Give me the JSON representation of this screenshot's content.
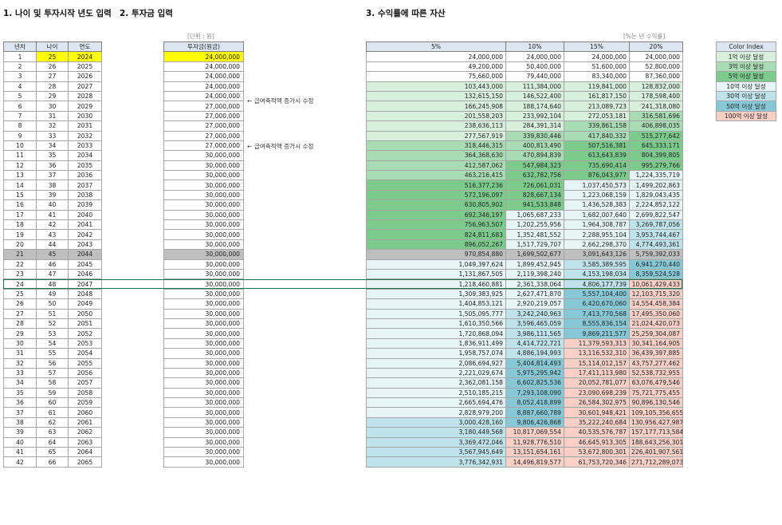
{
  "headers": {
    "section1": "1. 나이 및 투자시작 년도 입력",
    "section2": "2. 투자금 입력",
    "section3": "3. 수익률에 따른 자산"
  },
  "units": {
    "amount": "[단위 : 원]",
    "rate": "[%는 년 수익률]"
  },
  "table1": {
    "columns": [
      "년차",
      "나이",
      "연도"
    ]
  },
  "table2": {
    "columns": [
      "투자금(원금)"
    ]
  },
  "table3": {
    "columns": [
      "5%",
      "10%",
      "15%",
      "20%"
    ]
  },
  "notes": [
    {
      "row": 6,
      "text": "← 급여축적액 증가시 수정"
    },
    {
      "row": 11,
      "text": "← 급여축적액 증가시 수정"
    }
  ],
  "selected_row": 21,
  "legend": {
    "title": "Color Index",
    "items": [
      {
        "label": "1억 이상 달성",
        "color": "#d8efdc"
      },
      {
        "label": "3억 이상 달성",
        "color": "#a9dbb4"
      },
      {
        "label": "5억 이상 달성",
        "color": "#7ccb8d"
      },
      {
        "label": "10억 이상 달성",
        "color": "#e6f4f6"
      },
      {
        "label": "30억 이상 달성",
        "color": "#bfe3ea"
      },
      {
        "label": "50억 이상 달성",
        "color": "#86c8d6"
      },
      {
        "label": "100억 이상 달성",
        "color": "#f9cfc6"
      }
    ]
  },
  "rows": [
    [
      "1",
      "25",
      "2024",
      "24,000,000",
      "24,000,000",
      "24,000,000",
      "24,000,000",
      "24,000,000"
    ],
    [
      "2",
      "26",
      "2025",
      "24,000,000",
      "49,200,000",
      "50,400,000",
      "51,600,000",
      "52,800,000"
    ],
    [
      "3",
      "27",
      "2026",
      "24,000,000",
      "75,660,000",
      "79,440,000",
      "83,340,000",
      "87,360,000"
    ],
    [
      "4",
      "28",
      "2027",
      "24,000,000",
      "103,443,000",
      "111,384,000",
      "119,841,000",
      "128,832,000"
    ],
    [
      "5",
      "29",
      "2028",
      "24,000,000",
      "132,615,150",
      "146,522,400",
      "161,817,150",
      "178,598,400"
    ],
    [
      "6",
      "30",
      "2029",
      "27,000,000",
      "166,245,908",
      "188,174,640",
      "213,089,723",
      "241,318,080"
    ],
    [
      "7",
      "31",
      "2030",
      "27,000,000",
      "201,558,203",
      "233,992,104",
      "272,053,181",
      "316,581,696"
    ],
    [
      "8",
      "32",
      "2031",
      "27,000,000",
      "238,636,113",
      "284,391,314",
      "339,861,158",
      "406,898,035"
    ],
    [
      "9",
      "33",
      "2032",
      "27,000,000",
      "277,567,919",
      "339,830,446",
      "417,840,332",
      "515,277,642"
    ],
    [
      "10",
      "34",
      "2033",
      "27,000,000",
      "318,446,315",
      "400,813,490",
      "507,516,381",
      "645,333,171"
    ],
    [
      "11",
      "35",
      "2034",
      "30,000,000",
      "364,368,630",
      "470,894,839",
      "613,643,839",
      "804,399,805"
    ],
    [
      "12",
      "36",
      "2035",
      "30,000,000",
      "412,587,062",
      "547,984,323",
      "735,690,414",
      "995,279,766"
    ],
    [
      "13",
      "37",
      "2036",
      "30,000,000",
      "463,216,415",
      "632,782,756",
      "876,043,977",
      "1,224,335,719"
    ],
    [
      "14",
      "38",
      "2037",
      "30,000,000",
      "516,377,236",
      "726,061,031",
      "1,037,450,573",
      "1,499,202,863"
    ],
    [
      "15",
      "39",
      "2038",
      "30,000,000",
      "572,196,097",
      "828,667,134",
      "1,223,068,159",
      "1,829,043,435"
    ],
    [
      "16",
      "40",
      "2039",
      "30,000,000",
      "630,805,902",
      "941,533,848",
      "1,436,528,383",
      "2,224,852,122"
    ],
    [
      "17",
      "41",
      "2040",
      "30,000,000",
      "692,346,197",
      "1,065,687,233",
      "1,682,007,640",
      "2,699,822,547"
    ],
    [
      "18",
      "42",
      "2041",
      "30,000,000",
      "756,963,507",
      "1,202,255,956",
      "1,964,308,787",
      "3,269,787,056"
    ],
    [
      "19",
      "43",
      "2042",
      "30,000,000",
      "824,811,683",
      "1,352,481,552",
      "2,288,955,104",
      "3,953,744,467"
    ],
    [
      "20",
      "44",
      "2043",
      "30,000,000",
      "896,052,267",
      "1,517,729,707",
      "2,662,298,370",
      "4,774,493,361"
    ],
    [
      "21",
      "45",
      "2044",
      "30,000,000",
      "970,854,880",
      "1,699,502,677",
      "3,091,643,126",
      "5,759,392,033"
    ],
    [
      "22",
      "46",
      "2045",
      "30,000,000",
      "1,049,397,624",
      "1,899,452,945",
      "3,585,389,595",
      "6,941,270,440"
    ],
    [
      "23",
      "47",
      "2046",
      "30,000,000",
      "1,131,867,505",
      "2,119,398,240",
      "4,153,198,034",
      "8,359,524,528"
    ],
    [
      "24",
      "48",
      "2047",
      "30,000,000",
      "1,218,460,881",
      "2,361,338,064",
      "4,806,177,739",
      "10,061,429,433"
    ],
    [
      "25",
      "49",
      "2048",
      "30,000,000",
      "1,309,383,925",
      "2,627,471,870",
      "5,557,104,400",
      "12,103,715,320"
    ],
    [
      "26",
      "50",
      "2049",
      "30,000,000",
      "1,404,853,121",
      "2,920,219,057",
      "6,420,670,060",
      "14,554,458,384"
    ],
    [
      "27",
      "51",
      "2050",
      "30,000,000",
      "1,505,095,777",
      "3,242,240,963",
      "7,413,770,568",
      "17,495,350,060"
    ],
    [
      "28",
      "52",
      "2051",
      "30,000,000",
      "1,610,350,566",
      "3,596,465,059",
      "8,555,836,154",
      "21,024,420,073"
    ],
    [
      "29",
      "53",
      "2052",
      "30,000,000",
      "1,720,868,094",
      "3,986,111,565",
      "9,869,211,577",
      "25,259,304,087"
    ],
    [
      "30",
      "54",
      "2053",
      "30,000,000",
      "1,836,911,499",
      "4,414,722,721",
      "11,379,593,313",
      "30,341,164,905"
    ],
    [
      "31",
      "55",
      "2054",
      "30,000,000",
      "1,958,757,074",
      "4,886,194,993",
      "13,116,532,310",
      "36,439,397,885"
    ],
    [
      "32",
      "56",
      "2055",
      "30,000,000",
      "2,086,694,927",
      "5,404,814,493",
      "15,114,012,157",
      "43,757,277,462"
    ],
    [
      "33",
      "57",
      "2056",
      "30,000,000",
      "2,221,029,674",
      "5,975,295,942",
      "17,411,113,980",
      "52,538,732,955"
    ],
    [
      "34",
      "58",
      "2057",
      "30,000,000",
      "2,362,081,158",
      "6,602,825,536",
      "20,052,781,077",
      "63,076,479,546"
    ],
    [
      "35",
      "59",
      "2058",
      "30,000,000",
      "2,510,185,215",
      "7,293,108,090",
      "23,090,698,239",
      "75,721,775,455"
    ],
    [
      "36",
      "60",
      "2059",
      "30,000,000",
      "2,665,694,476",
      "8,052,418,899",
      "26,584,302,975",
      "90,896,130,546"
    ],
    [
      "37",
      "61",
      "2060",
      "30,000,000",
      "2,828,979,200",
      "8,887,660,789",
      "30,601,948,421",
      "109,105,356,655"
    ],
    [
      "38",
      "62",
      "2061",
      "30,000,000",
      "3,000,428,160",
      "9,806,426,868",
      "35,222,240,684",
      "130,956,427,987"
    ],
    [
      "39",
      "63",
      "2062",
      "30,000,000",
      "3,180,449,568",
      "10,817,069,554",
      "40,535,576,787",
      "157,177,713,584"
    ],
    [
      "40",
      "64",
      "2063",
      "30,000,000",
      "3,369,472,046",
      "11,928,776,510",
      "46,645,913,305",
      "188,643,256,301"
    ],
    [
      "41",
      "65",
      "2064",
      "30,000,000",
      "3,567,945,649",
      "13,151,654,161",
      "53,672,800,301",
      "226,401,907,561"
    ],
    [
      "42",
      "66",
      "2065",
      "30,000,000",
      "3,776,342,931",
      "14,496,819,577",
      "61,753,720,346",
      "271,712,289,073"
    ]
  ]
}
